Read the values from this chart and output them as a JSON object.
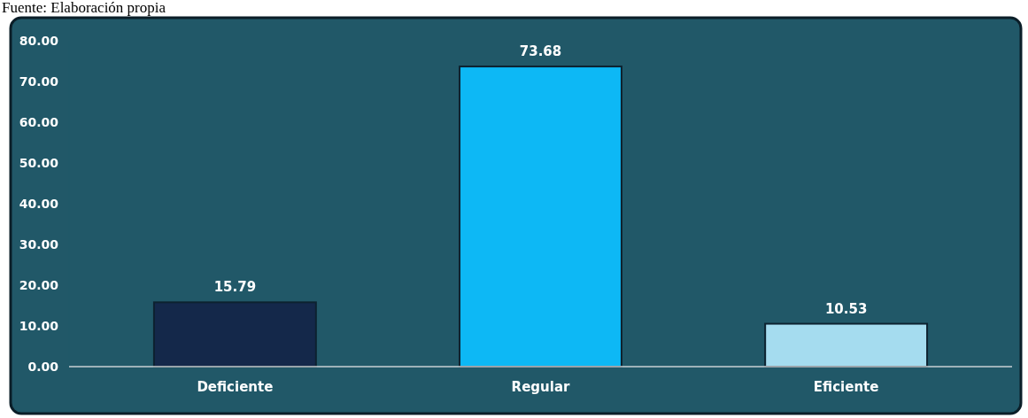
{
  "chart_data": {
    "type": "bar",
    "categories": [
      "Deficiente",
      "Regular",
      "Eficiente"
    ],
    "values": [
      15.79,
      73.68,
      10.53
    ],
    "colors": [
      "#14284a",
      "#0db8f5",
      "#a5dcef"
    ],
    "ylim": [
      0,
      80
    ],
    "yticks": [
      {
        "value": 0,
        "label": "0.00"
      },
      {
        "value": 10,
        "label": "10.00"
      },
      {
        "value": 20,
        "label": "20.00"
      },
      {
        "value": 30,
        "label": "30.00"
      },
      {
        "value": 40,
        "label": "40.00"
      },
      {
        "value": 50,
        "label": "50.00"
      },
      {
        "value": 60,
        "label": "60.00"
      },
      {
        "value": 70,
        "label": "70.00"
      },
      {
        "value": 80,
        "label": "80.00"
      }
    ],
    "data_labels": true,
    "grid": false,
    "annotations": [
      "Fuente: Elaboración propia"
    ]
  }
}
